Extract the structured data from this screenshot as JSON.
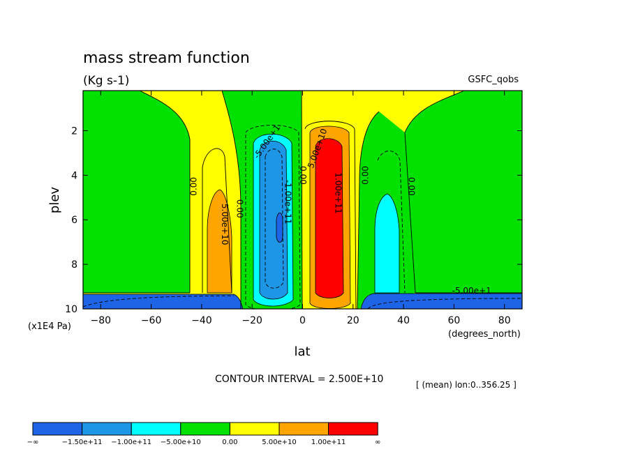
{
  "chart_data": {
    "type": "heatmap",
    "title": "mass stream function",
    "units": "(Kg s-1)",
    "dataset": "GSFC_qobs",
    "xlabel": "lat",
    "ylabel": "plev",
    "x_units": "(degrees_north)",
    "y_units": "(x1E4 Pa)",
    "xlim": [
      -87,
      87
    ],
    "ylim": [
      0.2,
      10
    ],
    "x_ticks": [
      -80,
      -60,
      -40,
      -20,
      0,
      20,
      40,
      60,
      80
    ],
    "x_tick_labels": [
      "−80",
      "−60",
      "−40",
      "−20",
      "0",
      "20",
      "40",
      "60",
      "80"
    ],
    "y_ticks": [
      2,
      4,
      6,
      8,
      10
    ],
    "y_tick_labels": [
      "2",
      "4",
      "6",
      "8",
      "10"
    ],
    "contour_interval_text": "CONTOUR INTERVAL = 2.500E+10",
    "mean_text": "[ (mean) lon:0..356.25 ]",
    "contour_labels": [
      {
        "text": "0.00",
        "lat": -43,
        "plev": 4.5,
        "rotate": -90
      },
      {
        "text": "0.00",
        "lat": -25,
        "plev": 5.5,
        "rotate": 90
      },
      {
        "text": "5.00e+10",
        "lat": -31,
        "plev": 6.2,
        "rotate": 90
      },
      {
        "text": "-5.00e+1",
        "lat": -14,
        "plev": 2.5,
        "rotate": -55
      },
      {
        "text": "-1.00e+11",
        "lat": -6,
        "plev": 5.2,
        "rotate": 90
      },
      {
        "text": "0.00",
        "lat": 0,
        "plev": 4.0,
        "rotate": 90
      },
      {
        "text": "5.00e+10",
        "lat": 6,
        "plev": 2.8,
        "rotate": -70
      },
      {
        "text": "1.00e+11",
        "lat": 14,
        "plev": 4.8,
        "rotate": 90
      },
      {
        "text": "0.00",
        "lat": 25,
        "plev": 4.0,
        "rotate": -90
      },
      {
        "text": "0.00",
        "lat": 43,
        "plev": 4.5,
        "rotate": 90
      },
      {
        "text": "-5.00e+1",
        "lat": 67,
        "plev": 9.2,
        "rotate": 0
      }
    ],
    "colorbar": {
      "colors": [
        "#1e64e6",
        "#1e96e6",
        "#00ffff",
        "#00e100",
        "#ffff00",
        "#ffa500",
        "#ff0000"
      ],
      "labels": [
        "−∞",
        "−1.50e+11",
        "−1.00e+11",
        "−5.00e+10",
        "0.00",
        "5.00e+10",
        "1.00e+11",
        "∞"
      ]
    }
  }
}
